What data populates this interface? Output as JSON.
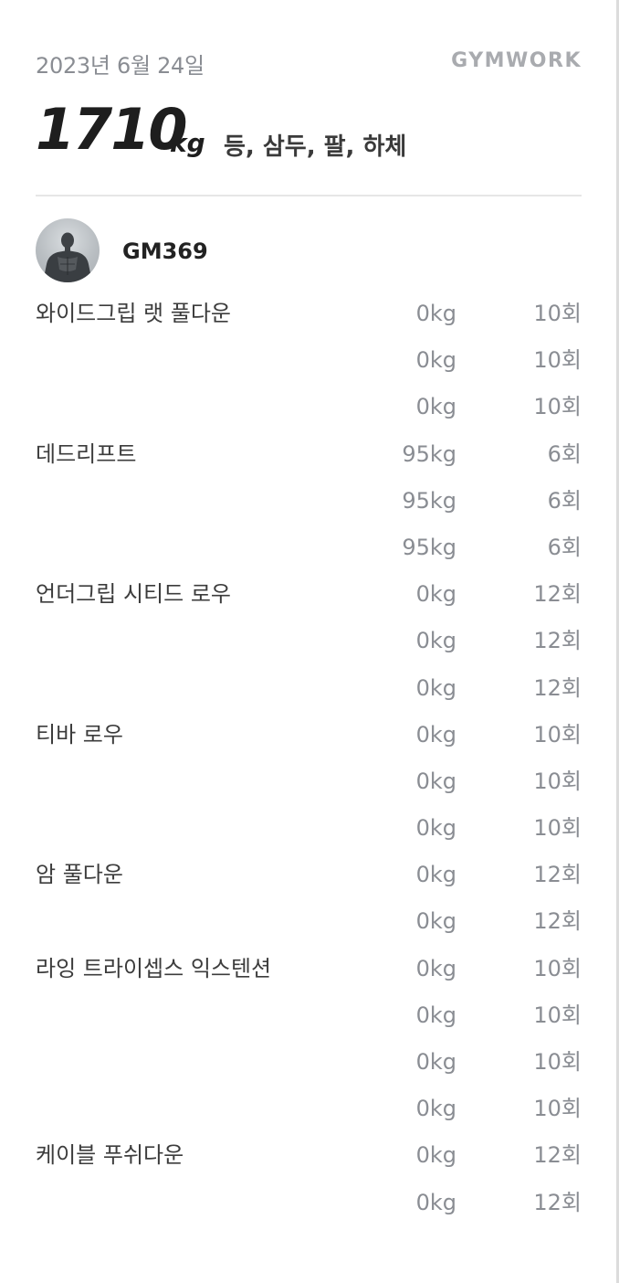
{
  "header": {
    "date": "2023년 6월 24일",
    "brand": "GYMWORK"
  },
  "summary": {
    "total_weight": "1710",
    "unit": "kg",
    "body_parts": "등, 삼두, 팔, 하체"
  },
  "user": {
    "name": "GM369"
  },
  "sets": [
    {
      "exercise": "와이드그립 랫 풀다운",
      "weight": "0kg",
      "reps": "10회"
    },
    {
      "exercise": "",
      "weight": "0kg",
      "reps": "10회"
    },
    {
      "exercise": "",
      "weight": "0kg",
      "reps": "10회"
    },
    {
      "exercise": "데드리프트",
      "weight": "95kg",
      "reps": "6회"
    },
    {
      "exercise": "",
      "weight": "95kg",
      "reps": "6회"
    },
    {
      "exercise": "",
      "weight": "95kg",
      "reps": "6회"
    },
    {
      "exercise": "언더그립 시티드 로우",
      "weight": "0kg",
      "reps": "12회"
    },
    {
      "exercise": "",
      "weight": "0kg",
      "reps": "12회"
    },
    {
      "exercise": "",
      "weight": "0kg",
      "reps": "12회"
    },
    {
      "exercise": "티바 로우",
      "weight": "0kg",
      "reps": "10회"
    },
    {
      "exercise": "",
      "weight": "0kg",
      "reps": "10회"
    },
    {
      "exercise": "",
      "weight": "0kg",
      "reps": "10회"
    },
    {
      "exercise": "암 풀다운",
      "weight": "0kg",
      "reps": "12회"
    },
    {
      "exercise": "",
      "weight": "0kg",
      "reps": "12회"
    },
    {
      "exercise": "라잉 트라이셉스 익스텐션",
      "weight": "0kg",
      "reps": "10회"
    },
    {
      "exercise": "",
      "weight": "0kg",
      "reps": "10회"
    },
    {
      "exercise": "",
      "weight": "0kg",
      "reps": "10회"
    },
    {
      "exercise": "",
      "weight": "0kg",
      "reps": "10회"
    },
    {
      "exercise": "케이블 푸쉬다운",
      "weight": "0kg",
      "reps": "12회"
    },
    {
      "exercise": "",
      "weight": "0kg",
      "reps": "12회"
    }
  ]
}
